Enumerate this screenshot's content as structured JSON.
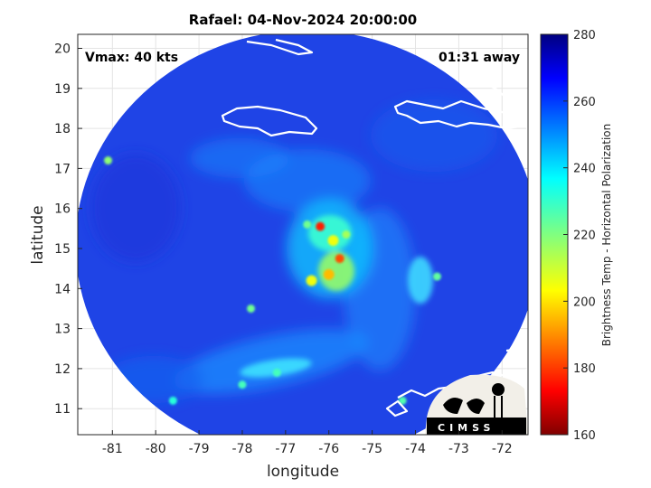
{
  "chart_data": {
    "type": "heatmap",
    "title": "Rafael: 04-Nov-2024 20:00:00",
    "xlabel": "longitude",
    "ylabel": "latitude",
    "xlim": [
      -81.8,
      -71.4
    ],
    "ylim": [
      10.35,
      20.35
    ],
    "xticks": [
      -81,
      -80,
      -79,
      -78,
      -77,
      -76,
      -75,
      -74,
      -73,
      -72
    ],
    "yticks": [
      11,
      12,
      13,
      14,
      15,
      16,
      17,
      18,
      19,
      20
    ],
    "grid": true,
    "annotations": {
      "vmax": "Vmax: 40 kts",
      "time_away": "01:31 away"
    },
    "colorbar": {
      "label": "Brightness Temp - Horizontal Polarization",
      "range": [
        160,
        280
      ],
      "ticks": [
        160,
        180,
        200,
        220,
        240,
        260,
        280
      ],
      "colormap": "jet"
    },
    "swath": {
      "center": [
        -76.5,
        15.1
      ],
      "radius_lon": 5.35,
      "radius_lat": 5.35
    },
    "storm_center": [
      -75.9,
      15.0
    ],
    "features": [
      {
        "lon": -76.2,
        "lat": 15.55,
        "tb": 176
      },
      {
        "lon": -75.75,
        "lat": 14.75,
        "tb": 182
      },
      {
        "lon": -76.0,
        "lat": 14.35,
        "tb": 195
      },
      {
        "lon": -75.9,
        "lat": 15.2,
        "tb": 205
      },
      {
        "lon": -76.4,
        "lat": 14.2,
        "tb": 205
      },
      {
        "lon": -75.6,
        "lat": 15.35,
        "tb": 215
      },
      {
        "lon": -76.5,
        "lat": 15.6,
        "tb": 222
      },
      {
        "lon": -73.5,
        "lat": 14.3,
        "tb": 224
      },
      {
        "lon": -77.8,
        "lat": 13.5,
        "tb": 222
      },
      {
        "lon": -81.1,
        "lat": 17.2,
        "tb": 218
      },
      {
        "lon": -77.2,
        "lat": 11.9,
        "tb": 228
      },
      {
        "lon": -78.0,
        "lat": 11.6,
        "tb": 228
      },
      {
        "lon": -79.6,
        "lat": 11.2,
        "tb": 232
      },
      {
        "lon": -74.3,
        "lat": 11.2,
        "tb": 226
      }
    ],
    "logo": {
      "text": "CIMSS"
    }
  }
}
